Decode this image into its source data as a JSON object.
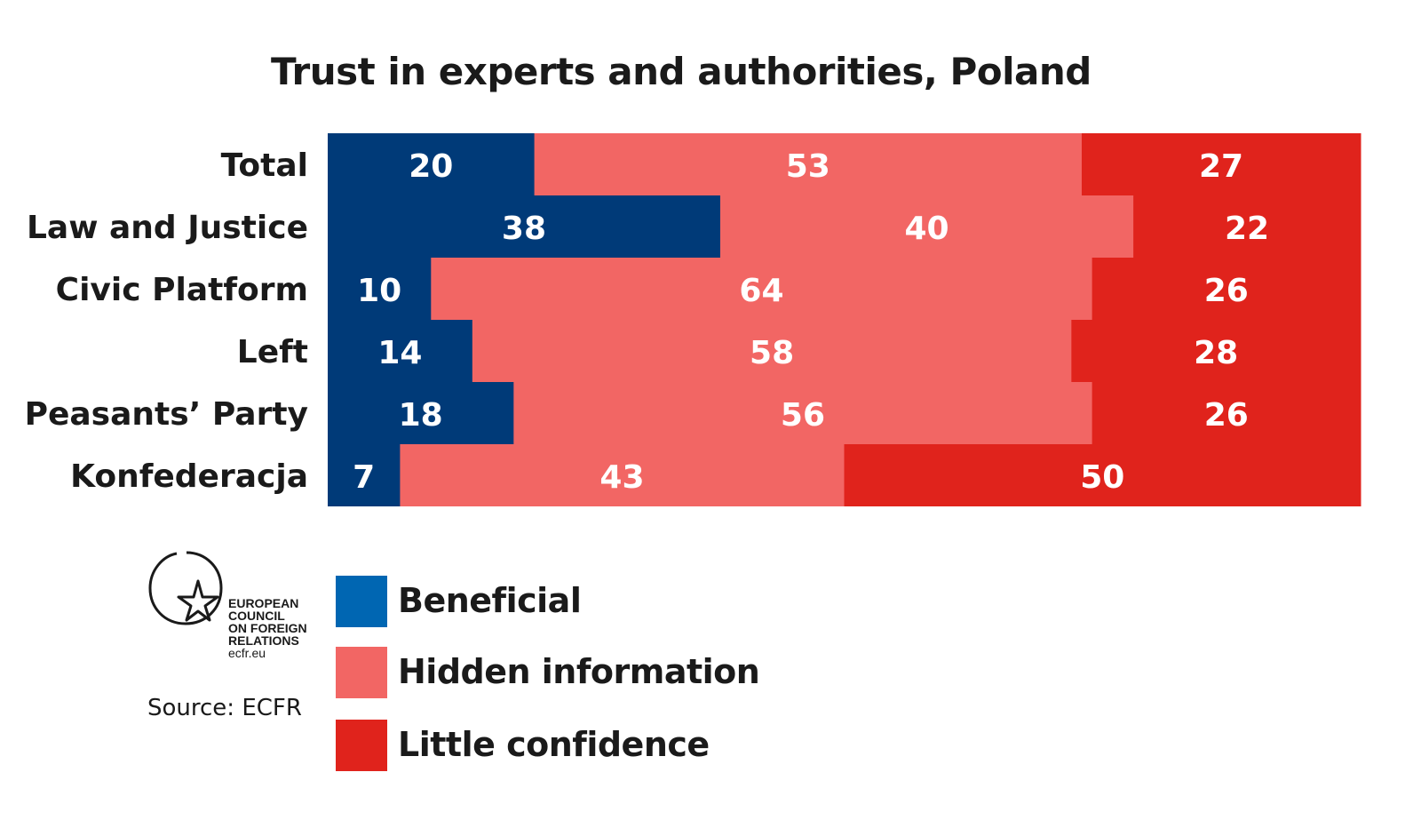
{
  "chart_data": {
    "type": "bar",
    "orientation": "horizontal",
    "stacked": true,
    "title": "Trust in experts and authorities, Poland",
    "categories": [
      "Total",
      "Law and Justice",
      "Civic Platform",
      "Left",
      "Peasants’ Party",
      "Konfederacja"
    ],
    "series": [
      {
        "name": "Beneficial",
        "color": "#003a78",
        "values": [
          20,
          38,
          10,
          14,
          18,
          7
        ]
      },
      {
        "name": "Hidden information",
        "color": "#f26664",
        "values": [
          53,
          40,
          64,
          58,
          56,
          43
        ]
      },
      {
        "name": "Little confidence",
        "color": "#e0231c",
        "values": [
          27,
          22,
          26,
          28,
          26,
          50
        ]
      }
    ],
    "xlim": [
      0,
      100
    ],
    "grid": false,
    "legend_position": "bottom-left"
  },
  "legend": {
    "items": [
      {
        "label": "Beneficial",
        "color": "#0066b2"
      },
      {
        "label": "Hidden information",
        "color": "#f26664"
      },
      {
        "label": "Little confidence",
        "color": "#e0231c"
      }
    ]
  },
  "logo": {
    "line1": "EUROPEAN",
    "line2": "COUNCIL",
    "line3": "ON FOREIGN",
    "line4": "RELATIONS",
    "line5": "ecfr.eu",
    "icon": "star-circle-icon"
  },
  "source": "Source: ECFR"
}
